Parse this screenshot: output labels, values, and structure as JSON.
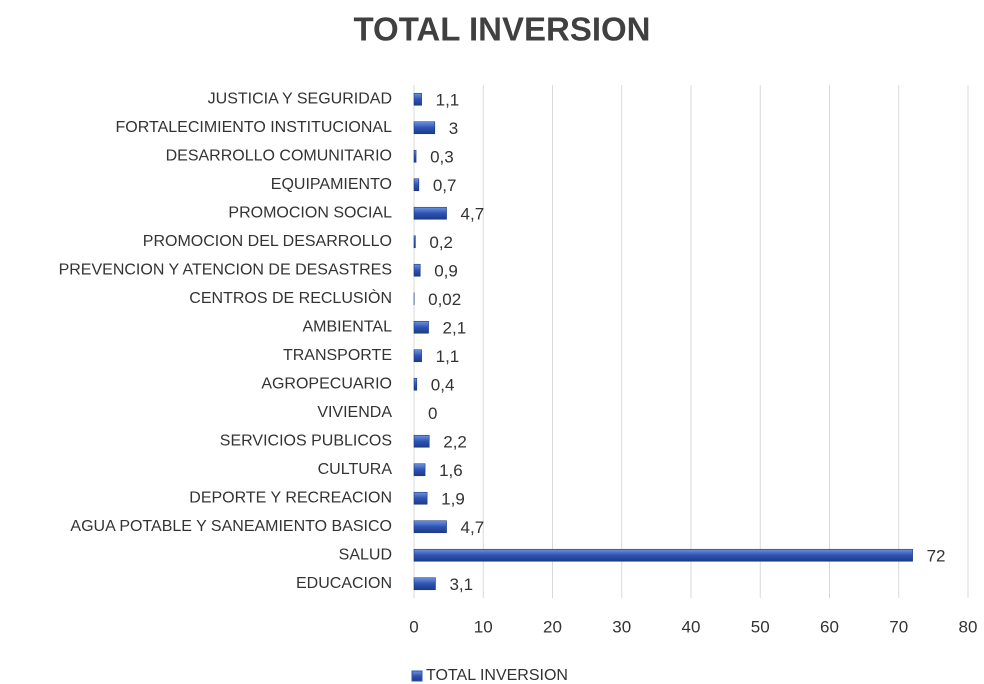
{
  "chart_data": {
    "type": "bar",
    "orientation": "horizontal",
    "title": "TOTAL INVERSION",
    "categories": [
      "EDUCACION",
      "SALUD",
      "AGUA POTABLE Y SANEAMIENTO BASICO",
      "DEPORTE Y RECREACION",
      "CULTURA",
      "SERVICIOS PUBLICOS",
      "VIVIENDA",
      "AGROPECUARIO",
      "TRANSPORTE",
      "AMBIENTAL",
      "CENTROS DE RECLUSIÒN",
      "PREVENCION Y ATENCION DE DESASTRES",
      "PROMOCION DEL DESARROLLO",
      "PROMOCION SOCIAL",
      "EQUIPAMIENTO",
      "DESARROLLO COMUNITARIO",
      "FORTALECIMIENTO INSTITUCIONAL",
      "JUSTICIA Y SEGURIDAD"
    ],
    "series": [
      {
        "name": "TOTAL INVERSION",
        "color": "#2e54b3",
        "values": [
          3.1,
          72,
          4.7,
          1.9,
          1.6,
          2.2,
          0,
          0.4,
          1.1,
          2.1,
          0.02,
          0.9,
          0.2,
          4.7,
          0.7,
          0.3,
          3,
          1.1
        ],
        "value_labels": [
          "3,1",
          "72",
          "4,7",
          "1,9",
          "1,6",
          "2,2",
          "0",
          "0,4",
          "1,1",
          "2,1",
          "0,02",
          "0,9",
          "0,2",
          "4,7",
          "0,7",
          "0,3",
          "3",
          "1,1"
        ]
      }
    ],
    "xlim": [
      0,
      80
    ],
    "xticks": [
      0,
      10,
      20,
      30,
      40,
      50,
      60,
      70,
      80
    ],
    "grid": true,
    "legend": "bottom"
  }
}
